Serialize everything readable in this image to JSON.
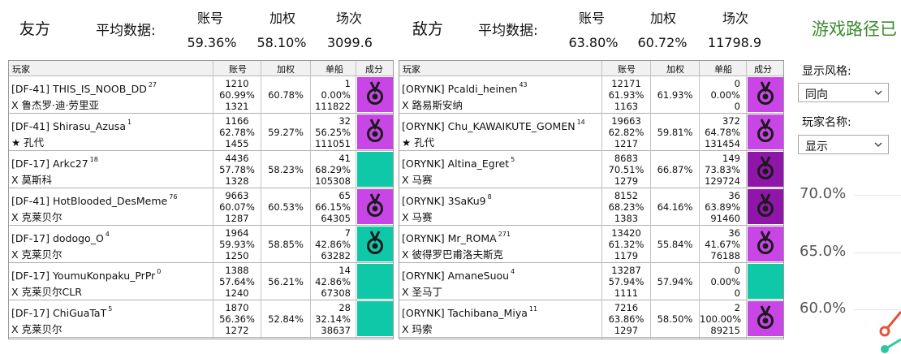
{
  "friendly": {
    "team_label": "友方",
    "avg_label": "平均数据:",
    "stat_names": [
      "账号",
      "加权",
      "场次"
    ],
    "stat_values": [
      "59.36%",
      "58.10%",
      "3099.6"
    ]
  },
  "enemy": {
    "team_label": "敌方",
    "avg_label": "平均数据:",
    "stat_names": [
      "账号",
      "加权",
      "场次"
    ],
    "stat_values": [
      "63.80%",
      "60.72%",
      "11798.9"
    ]
  },
  "route_title": "游戏路径已",
  "table_headers": {
    "player": "玩家",
    "account": "账号",
    "weighted": "加权",
    "ship": "单船",
    "achievement": "成分"
  },
  "badge_colors": {
    "purple": "#c845e6",
    "dark": "#8f16a8",
    "teal": "#0fc8a8"
  },
  "friendly_players": [
    {
      "name": "[DF-41] THIS_IS_NOOB_DD",
      "tier": "27",
      "ship": "X 鲁杰罗·迪·劳里亚",
      "acc_battles": "1210",
      "acc_wr": "60.99%",
      "acc_pr": "1321",
      "weighted": "60.78%",
      "ship_battles": "1",
      "ship_wr": "0.00%",
      "ship_pr": "111822",
      "badge": "purple",
      "medal": true
    },
    {
      "name": "[DF-41] Shirasu_Azusa",
      "tier": "1",
      "ship": "★ 孔代",
      "acc_battles": "1166",
      "acc_wr": "62.78%",
      "acc_pr": "1455",
      "weighted": "59.27%",
      "ship_battles": "32",
      "ship_wr": "56.25%",
      "ship_pr": "111051",
      "badge": "purple",
      "medal": true
    },
    {
      "name": "[DF-17] Arkc27",
      "tier": "18",
      "ship": "X 莫斯科",
      "acc_battles": "4436",
      "acc_wr": "57.78%",
      "acc_pr": "1328",
      "weighted": "58.23%",
      "ship_battles": "41",
      "ship_wr": "68.29%",
      "ship_pr": "105308",
      "badge": "teal",
      "medal": false
    },
    {
      "name": "[DF-41] HotBlooded_DesMeme",
      "tier": "76",
      "ship": "X 克莱贝尔",
      "acc_battles": "9663",
      "acc_wr": "60.07%",
      "acc_pr": "1287",
      "weighted": "60.53%",
      "ship_battles": "65",
      "ship_wr": "66.15%",
      "ship_pr": "64305",
      "badge": "purple",
      "medal": true
    },
    {
      "name": "[DF-17] dodogo_O",
      "tier": "4",
      "ship": "X 克莱贝尔",
      "acc_battles": "1964",
      "acc_wr": "59.93%",
      "acc_pr": "1250",
      "weighted": "58.85%",
      "ship_battles": "7",
      "ship_wr": "42.86%",
      "ship_pr": "63282",
      "badge": "teal",
      "medal": true
    },
    {
      "name": "[DF-17] YoumuKonpaku_PrPr",
      "tier": "0",
      "ship": "X 克莱贝尔CLR",
      "acc_battles": "1388",
      "acc_wr": "57.64%",
      "acc_pr": "1240",
      "weighted": "56.21%",
      "ship_battles": "14",
      "ship_wr": "42.86%",
      "ship_pr": "67308",
      "badge": "teal",
      "medal": false
    },
    {
      "name": "[DF-17] ChiGuaTaT",
      "tier": "5",
      "ship": "X 克莱贝尔",
      "acc_battles": "1870",
      "acc_wr": "56.36%",
      "acc_pr": "1272",
      "weighted": "52.84%",
      "ship_battles": "28",
      "ship_wr": "32.14%",
      "ship_pr": "38637",
      "badge": "teal",
      "medal": false
    }
  ],
  "enemy_players": [
    {
      "name": "[ORYNK] Pcaldi_heinen",
      "tier": "43",
      "ship": "X 路易斯安纳",
      "acc_battles": "12171",
      "acc_wr": "61.93%",
      "acc_pr": "1163",
      "weighted": "61.93%",
      "ship_battles": "0",
      "ship_wr": "0.00%",
      "ship_pr": "0",
      "badge": "purple",
      "medal": true
    },
    {
      "name": "[ORYNK] Chu_KAWAIKUTE_GOMEN",
      "tier": "14",
      "ship": "★ 孔代",
      "acc_battles": "19663",
      "acc_wr": "62.82%",
      "acc_pr": "1217",
      "weighted": "59.81%",
      "ship_battles": "372",
      "ship_wr": "64.78%",
      "ship_pr": "131454",
      "badge": "purple",
      "medal": true
    },
    {
      "name": "[ORYNK] Altina_Egret",
      "tier": "5",
      "ship": "X 马赛",
      "acc_battles": "8683",
      "acc_wr": "70.51%",
      "acc_pr": "1279",
      "weighted": "66.87%",
      "ship_battles": "149",
      "ship_wr": "73.83%",
      "ship_pr": "129724",
      "badge": "dark",
      "medal": true
    },
    {
      "name": "[ORYNK] 3SaKu9",
      "tier": "8",
      "ship": "X 马赛",
      "acc_battles": "8152",
      "acc_wr": "68.23%",
      "acc_pr": "1383",
      "weighted": "64.16%",
      "ship_battles": "36",
      "ship_wr": "63.89%",
      "ship_pr": "91460",
      "badge": "dark",
      "medal": true
    },
    {
      "name": "[ORYNK] Mr_ROMA",
      "tier": "271",
      "ship": "X 彼得罗巴甫洛夫斯克",
      "acc_battles": "13420",
      "acc_wr": "61.32%",
      "acc_pr": "1179",
      "weighted": "55.84%",
      "ship_battles": "36",
      "ship_wr": "41.67%",
      "ship_pr": "76188",
      "badge": "purple",
      "medal": true
    },
    {
      "name": "[ORYNK] AmaneSuou",
      "tier": "4",
      "ship": "X 圣马丁",
      "acc_battles": "13287",
      "acc_wr": "57.94%",
      "acc_pr": "1111",
      "weighted": "57.94%",
      "ship_battles": "0",
      "ship_wr": "0.00%",
      "ship_pr": "0",
      "badge": "teal",
      "medal": false
    },
    {
      "name": "[ORYNK] Tachibana_Miya",
      "tier": "11",
      "ship": "X 玛索",
      "acc_battles": "7216",
      "acc_wr": "63.86%",
      "acc_pr": "1297",
      "weighted": "58.50%",
      "ship_battles": "2",
      "ship_wr": "100.00%",
      "ship_pr": "89215",
      "badge": "purple",
      "medal": true
    }
  ],
  "controls": {
    "style_label": "显示风格:",
    "style_value": "同向",
    "name_label": "玩家名称:",
    "name_value": "显示"
  },
  "axis_labels": [
    "70.0%",
    "65.0%",
    "60.0%"
  ]
}
